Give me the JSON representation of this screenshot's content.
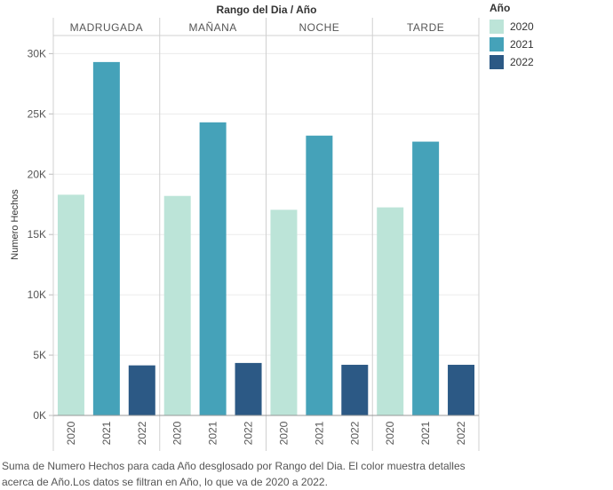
{
  "chart_data": {
    "type": "bar",
    "column_header": "Rango del Dia  / Año",
    "facets": [
      "MADRUGADA",
      "MAÑANA",
      "NOCHE",
      "TARDE"
    ],
    "categories": [
      "2020",
      "2021",
      "2022"
    ],
    "ylabel": "Numero Hechos",
    "ylim": [
      0,
      31500
    ],
    "yticks": [
      0,
      5000,
      10000,
      15000,
      20000,
      25000,
      30000
    ],
    "ytick_labels": [
      "0K",
      "5K",
      "10K",
      "15K",
      "20K",
      "25K",
      "30K"
    ],
    "grid": true,
    "values": {
      "MADRUGADA": [
        18300,
        29300,
        4150
      ],
      "MAÑANA": [
        18200,
        24300,
        4350
      ],
      "NOCHE": [
        17050,
        23200,
        4200
      ],
      "TARDE": [
        17250,
        22700,
        4200
      ]
    },
    "legend_placement": "top-right"
  },
  "legend": {
    "title": "Año",
    "items": [
      {
        "label": "2020",
        "color": "#bce4d8"
      },
      {
        "label": "2021",
        "color": "#45a2b9"
      },
      {
        "label": "2022",
        "color": "#2c5985"
      }
    ]
  },
  "caption": {
    "line1": "Suma de Numero Hechos para cada Año desglosado por Rango del Dia. El color muestra detalles",
    "line2": "acerca de Año.Los datos se filtran en Año, lo que va de 2020 a 2022."
  }
}
